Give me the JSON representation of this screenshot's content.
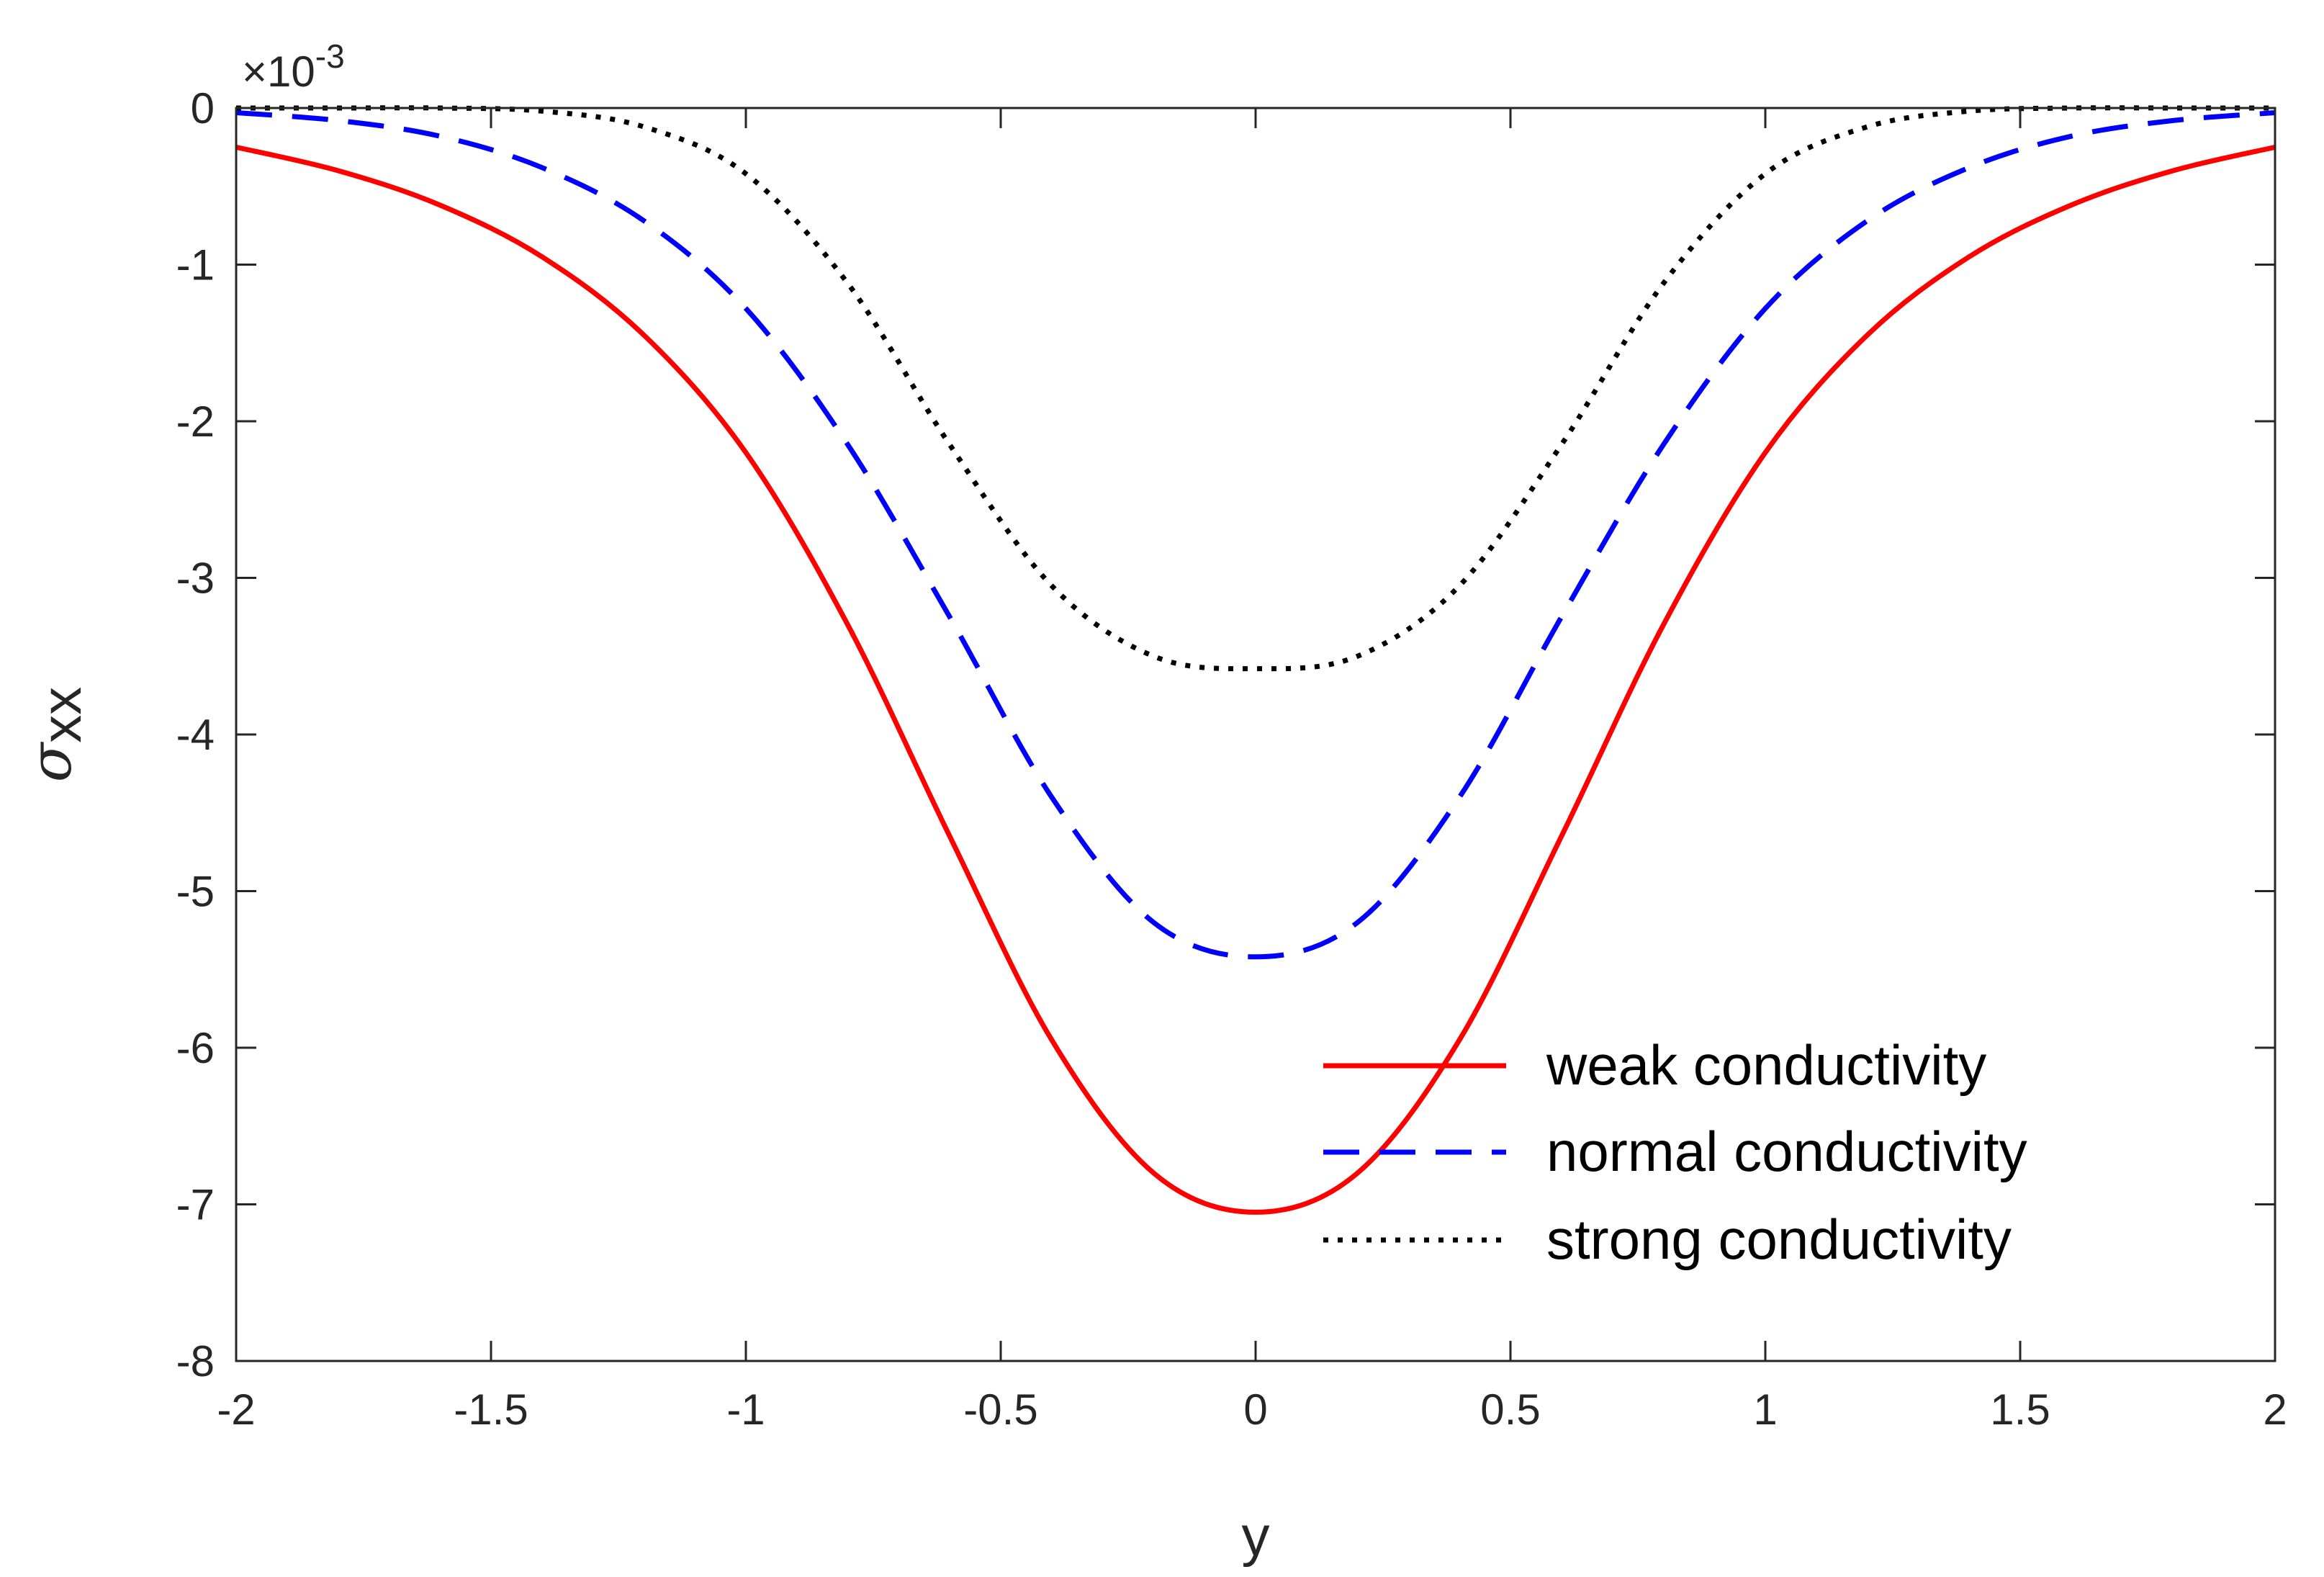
{
  "chart_data": {
    "type": "line",
    "title": "",
    "xlabel": "y",
    "ylabel": "σ",
    "ylabel_subscript": "xx",
    "y_multiplier": "×10",
    "y_multiplier_exponent": "-3",
    "xlim": [
      -2,
      2
    ],
    "ylim": [
      -8,
      0
    ],
    "xticks": [
      -2,
      -1.5,
      -1,
      -0.5,
      0,
      0.5,
      1,
      1.5,
      2
    ],
    "xtick_labels": [
      "-2",
      "-1.5",
      "-1",
      "-0.5",
      "0",
      "0.5",
      "1",
      "1.5",
      "2"
    ],
    "yticks": [
      0,
      -1,
      -2,
      -3,
      -4,
      -5,
      -6,
      -7,
      -8
    ],
    "ytick_labels": [
      "0",
      "-1",
      "-2",
      "-3",
      "-4",
      "-5",
      "-6",
      "-7",
      "-8"
    ],
    "grid": false,
    "legend_position": "bottom-right",
    "x": [
      -2,
      -1.8,
      -1.6,
      -1.4,
      -1.2,
      -1,
      -0.8,
      -0.6,
      -0.4,
      -0.2,
      0,
      0.2,
      0.4,
      0.6,
      0.8,
      1,
      1.2,
      1.4,
      1.6,
      1.8,
      2
    ],
    "series": [
      {
        "name": "weak conductivity",
        "color": "#ff0000",
        "style": "solid",
        "values": [
          -0.25,
          -0.4,
          -0.62,
          -0.95,
          -1.45,
          -2.2,
          -3.3,
          -4.65,
          -5.95,
          -6.8,
          -7.05,
          -6.8,
          -5.95,
          -4.65,
          -3.3,
          -2.2,
          -1.45,
          -0.95,
          -0.62,
          -0.4,
          -0.25
        ]
      },
      {
        "name": "normal conductivity",
        "color": "#0000ff",
        "style": "dashed",
        "values": [
          -0.03,
          -0.08,
          -0.18,
          -0.38,
          -0.72,
          -1.28,
          -2.15,
          -3.25,
          -4.4,
          -5.2,
          -5.42,
          -5.2,
          -4.4,
          -3.25,
          -2.15,
          -1.28,
          -0.72,
          -0.38,
          -0.18,
          -0.08,
          -0.03
        ]
      },
      {
        "name": "strong conductivity",
        "color": "#000000",
        "style": "dotted",
        "values": [
          0,
          0,
          0,
          -0.02,
          -0.12,
          -0.42,
          -1.12,
          -2.15,
          -3.05,
          -3.5,
          -3.58,
          -3.5,
          -3.05,
          -2.15,
          -1.12,
          -0.42,
          -0.12,
          -0.02,
          0,
          0,
          0
        ]
      }
    ]
  }
}
